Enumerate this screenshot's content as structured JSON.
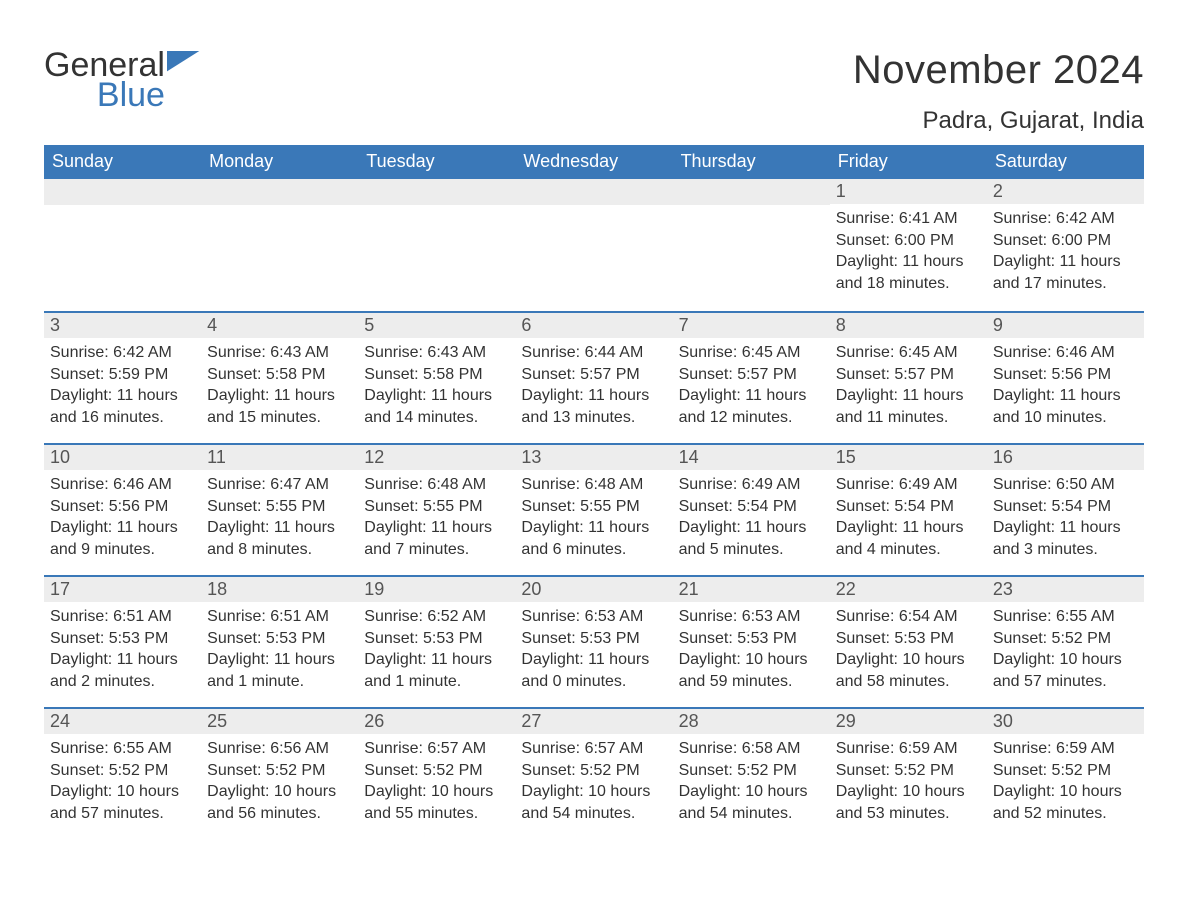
{
  "brand": {
    "general": "General",
    "blue": "Blue"
  },
  "colors": {
    "header_bg": "#3a78b8",
    "header_text": "#ffffff",
    "row_divider": "#3a78b8",
    "daynum_bg": "#ededed",
    "text": "#333333",
    "background": "#ffffff"
  },
  "title": "November 2024",
  "location": "Padra, Gujarat, India",
  "weekdays": [
    "Sunday",
    "Monday",
    "Tuesday",
    "Wednesday",
    "Thursday",
    "Friday",
    "Saturday"
  ],
  "label_sunrise": "Sunrise: ",
  "label_sunset": "Sunset: ",
  "label_daylight": "Daylight: ",
  "weeks": [
    [
      null,
      null,
      null,
      null,
      null,
      {
        "num": "1",
        "sunrise": "6:41 AM",
        "sunset": "6:00 PM",
        "daylight": "11 hours and 18 minutes."
      },
      {
        "num": "2",
        "sunrise": "6:42 AM",
        "sunset": "6:00 PM",
        "daylight": "11 hours and 17 minutes."
      }
    ],
    [
      {
        "num": "3",
        "sunrise": "6:42 AM",
        "sunset": "5:59 PM",
        "daylight": "11 hours and 16 minutes."
      },
      {
        "num": "4",
        "sunrise": "6:43 AM",
        "sunset": "5:58 PM",
        "daylight": "11 hours and 15 minutes."
      },
      {
        "num": "5",
        "sunrise": "6:43 AM",
        "sunset": "5:58 PM",
        "daylight": "11 hours and 14 minutes."
      },
      {
        "num": "6",
        "sunrise": "6:44 AM",
        "sunset": "5:57 PM",
        "daylight": "11 hours and 13 minutes."
      },
      {
        "num": "7",
        "sunrise": "6:45 AM",
        "sunset": "5:57 PM",
        "daylight": "11 hours and 12 minutes."
      },
      {
        "num": "8",
        "sunrise": "6:45 AM",
        "sunset": "5:57 PM",
        "daylight": "11 hours and 11 minutes."
      },
      {
        "num": "9",
        "sunrise": "6:46 AM",
        "sunset": "5:56 PM",
        "daylight": "11 hours and 10 minutes."
      }
    ],
    [
      {
        "num": "10",
        "sunrise": "6:46 AM",
        "sunset": "5:56 PM",
        "daylight": "11 hours and 9 minutes."
      },
      {
        "num": "11",
        "sunrise": "6:47 AM",
        "sunset": "5:55 PM",
        "daylight": "11 hours and 8 minutes."
      },
      {
        "num": "12",
        "sunrise": "6:48 AM",
        "sunset": "5:55 PM",
        "daylight": "11 hours and 7 minutes."
      },
      {
        "num": "13",
        "sunrise": "6:48 AM",
        "sunset": "5:55 PM",
        "daylight": "11 hours and 6 minutes."
      },
      {
        "num": "14",
        "sunrise": "6:49 AM",
        "sunset": "5:54 PM",
        "daylight": "11 hours and 5 minutes."
      },
      {
        "num": "15",
        "sunrise": "6:49 AM",
        "sunset": "5:54 PM",
        "daylight": "11 hours and 4 minutes."
      },
      {
        "num": "16",
        "sunrise": "6:50 AM",
        "sunset": "5:54 PM",
        "daylight": "11 hours and 3 minutes."
      }
    ],
    [
      {
        "num": "17",
        "sunrise": "6:51 AM",
        "sunset": "5:53 PM",
        "daylight": "11 hours and 2 minutes."
      },
      {
        "num": "18",
        "sunrise": "6:51 AM",
        "sunset": "5:53 PM",
        "daylight": "11 hours and 1 minute."
      },
      {
        "num": "19",
        "sunrise": "6:52 AM",
        "sunset": "5:53 PM",
        "daylight": "11 hours and 1 minute."
      },
      {
        "num": "20",
        "sunrise": "6:53 AM",
        "sunset": "5:53 PM",
        "daylight": "11 hours and 0 minutes."
      },
      {
        "num": "21",
        "sunrise": "6:53 AM",
        "sunset": "5:53 PM",
        "daylight": "10 hours and 59 minutes."
      },
      {
        "num": "22",
        "sunrise": "6:54 AM",
        "sunset": "5:53 PM",
        "daylight": "10 hours and 58 minutes."
      },
      {
        "num": "23",
        "sunrise": "6:55 AM",
        "sunset": "5:52 PM",
        "daylight": "10 hours and 57 minutes."
      }
    ],
    [
      {
        "num": "24",
        "sunrise": "6:55 AM",
        "sunset": "5:52 PM",
        "daylight": "10 hours and 57 minutes."
      },
      {
        "num": "25",
        "sunrise": "6:56 AM",
        "sunset": "5:52 PM",
        "daylight": "10 hours and 56 minutes."
      },
      {
        "num": "26",
        "sunrise": "6:57 AM",
        "sunset": "5:52 PM",
        "daylight": "10 hours and 55 minutes."
      },
      {
        "num": "27",
        "sunrise": "6:57 AM",
        "sunset": "5:52 PM",
        "daylight": "10 hours and 54 minutes."
      },
      {
        "num": "28",
        "sunrise": "6:58 AM",
        "sunset": "5:52 PM",
        "daylight": "10 hours and 54 minutes."
      },
      {
        "num": "29",
        "sunrise": "6:59 AM",
        "sunset": "5:52 PM",
        "daylight": "10 hours and 53 minutes."
      },
      {
        "num": "30",
        "sunrise": "6:59 AM",
        "sunset": "5:52 PM",
        "daylight": "10 hours and 52 minutes."
      }
    ]
  ]
}
